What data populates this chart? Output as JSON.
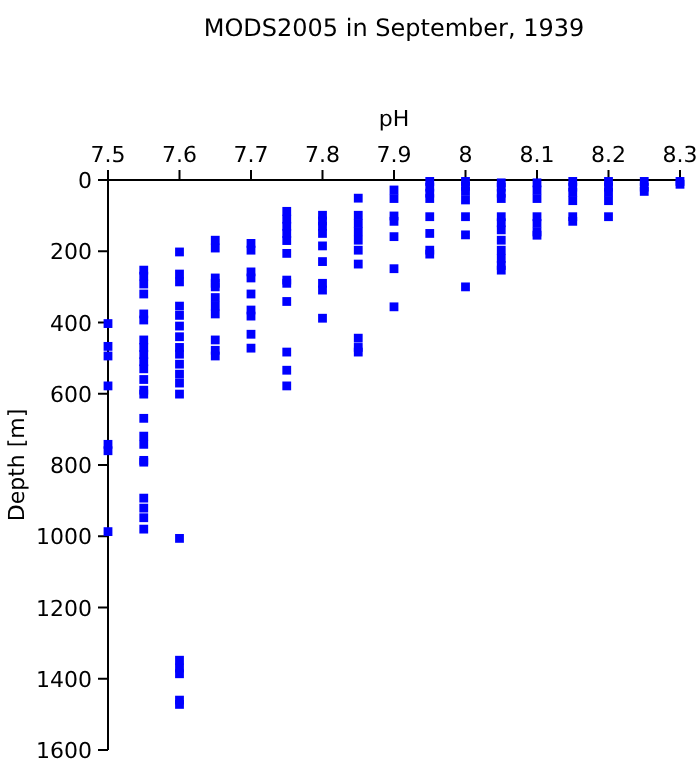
{
  "chart_data": {
    "type": "scatter",
    "title": "MODS2005 in September, 1939",
    "xlabel": "pH",
    "ylabel": "Depth [m]",
    "x": [
      7.5,
      7.5,
      7.5,
      7.5,
      7.5,
      7.5,
      7.5,
      7.55,
      7.55,
      7.55,
      7.55,
      7.55,
      7.55,
      7.55,
      7.55,
      7.55,
      7.55,
      7.55,
      7.55,
      7.55,
      7.55,
      7.55,
      7.55,
      7.55,
      7.55,
      7.55,
      7.55,
      7.55,
      7.55,
      7.55,
      7.6,
      7.6,
      7.6,
      7.6,
      7.6,
      7.6,
      7.6,
      7.6,
      7.6,
      7.6,
      7.6,
      7.6,
      7.6,
      7.6,
      7.6,
      7.6,
      7.6,
      7.6,
      7.6,
      7.65,
      7.65,
      7.65,
      7.65,
      7.65,
      7.65,
      7.65,
      7.65,
      7.65,
      7.65,
      7.65,
      7.7,
      7.7,
      7.7,
      7.7,
      7.7,
      7.7,
      7.7,
      7.7,
      7.7,
      7.75,
      7.75,
      7.75,
      7.75,
      7.75,
      7.75,
      7.75,
      7.75,
      7.75,
      7.75,
      7.75,
      7.75,
      7.8,
      7.8,
      7.8,
      7.8,
      7.8,
      7.8,
      7.8,
      7.8,
      7.8,
      7.85,
      7.85,
      7.85,
      7.85,
      7.85,
      7.85,
      7.85,
      7.85,
      7.85,
      7.85,
      7.9,
      7.9,
      7.9,
      7.9,
      7.9,
      7.9,
      7.9,
      7.95,
      7.95,
      7.95,
      7.95,
      7.95,
      7.95,
      7.95,
      7.95,
      8.0,
      8.0,
      8.0,
      8.0,
      8.0,
      8.0,
      8.0,
      8.05,
      8.05,
      8.05,
      8.05,
      8.05,
      8.05,
      8.05,
      8.05,
      8.05,
      8.05,
      8.05,
      8.05,
      8.1,
      8.1,
      8.1,
      8.1,
      8.1,
      8.1,
      8.1,
      8.15,
      8.15,
      8.15,
      8.15,
      8.15,
      8.15,
      8.2,
      8.2,
      8.2,
      8.2,
      8.2,
      8.25,
      8.25,
      8.25,
      8.3,
      8.3
    ],
    "values": [
      403,
      467,
      494,
      578,
      742,
      760,
      987,
      253,
      270,
      292,
      320,
      376,
      393,
      449,
      470,
      490,
      510,
      530,
      560,
      590,
      601,
      669,
      719,
      742,
      792,
      787,
      893,
      921,
      948,
      980,
      202,
      264,
      286,
      354,
      380,
      410,
      440,
      470,
      489,
      517,
      545,
      570,
      601,
      1006,
      1348,
      1370,
      1386,
      1472,
      1460,
      169,
      191,
      275,
      300,
      330,
      354,
      376,
      449,
      478,
      494,
      290,
      178,
      197,
      258,
      275,
      320,
      365,
      382,
      433,
      472,
      88,
      110,
      130,
      150,
      170,
      206,
      281,
      290,
      341,
      483,
      534,
      578,
      99,
      115,
      130,
      150,
      185,
      229,
      290,
      309,
      388,
      51,
      99,
      122,
      145,
      169,
      197,
      236,
      444,
      483,
      470,
      28,
      52,
      101,
      116,
      159,
      249,
      356,
      4,
      20,
      37,
      52,
      103,
      150,
      197,
      208,
      4,
      18,
      32,
      56,
      103,
      154,
      300,
      8,
      20,
      37,
      52,
      103,
      120,
      140,
      169,
      197,
      220,
      240,
      253,
      8,
      28,
      52,
      103,
      122,
      146,
      155,
      4,
      20,
      35,
      58,
      103,
      116,
      4,
      20,
      35,
      58,
      103,
      4,
      20,
      32,
      4,
      12
    ],
    "color": "#0000ff",
    "marker": "square",
    "xlim": [
      7.5,
      8.3
    ],
    "xticks": [
      7.5,
      7.6,
      7.7,
      7.8,
      7.9,
      {
        "value": 8,
        "label": "8"
      },
      8.1,
      8.2,
      8.3
    ],
    "ylim": [
      1600,
      0
    ],
    "yticks": [
      0,
      200,
      400,
      600,
      800,
      1000,
      1200,
      1400,
      1600
    ],
    "grid": false
  }
}
